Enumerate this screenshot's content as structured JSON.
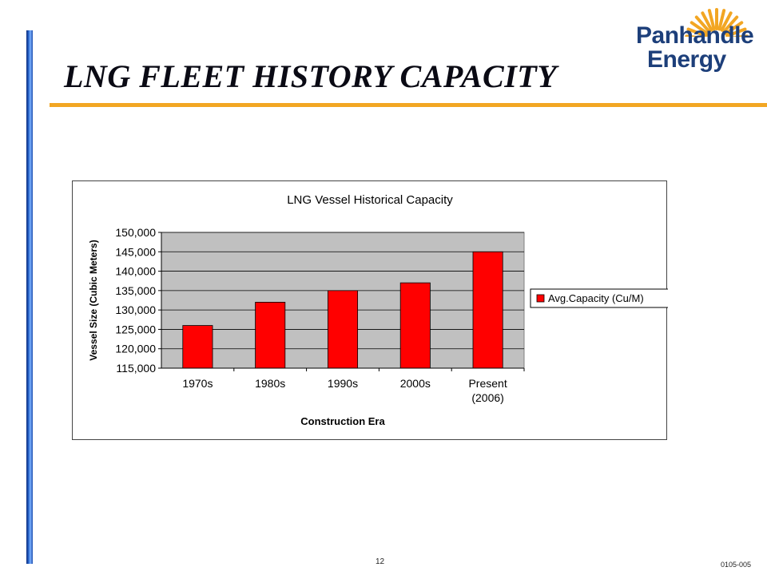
{
  "slide": {
    "title": "LNG FLEET HISTORY CAPACITY",
    "page_number": "12",
    "doc_code": "0105-005",
    "colors": {
      "accent_bar": "#f2a623",
      "left_bar": "#1d4fb0",
      "logo_text": "#1d3f7a",
      "sun": "#f2a623"
    }
  },
  "logo": {
    "line1": "Panhandle",
    "line2": "Energy"
  },
  "chart_data": {
    "type": "bar",
    "title": "LNG Vessel Historical Capacity",
    "xlabel": "Construction Era",
    "ylabel": "Vessel Size (Cubic Meters)",
    "categories": [
      "1970s",
      "1980s",
      "1990s",
      "2000s",
      "Present (2006)"
    ],
    "series": [
      {
        "name": "Avg.Capacity (Cu/M)",
        "values": [
          126000,
          132000,
          135000,
          137000,
          145000
        ],
        "color": "#ff0000"
      }
    ],
    "ylim": [
      115000,
      150000
    ],
    "yticks": [
      "115,000",
      "120,000",
      "125,000",
      "130,000",
      "135,000",
      "140,000",
      "145,000",
      "150,000"
    ],
    "grid": true,
    "plot_background": "#c0c0c0",
    "legend": "right"
  }
}
